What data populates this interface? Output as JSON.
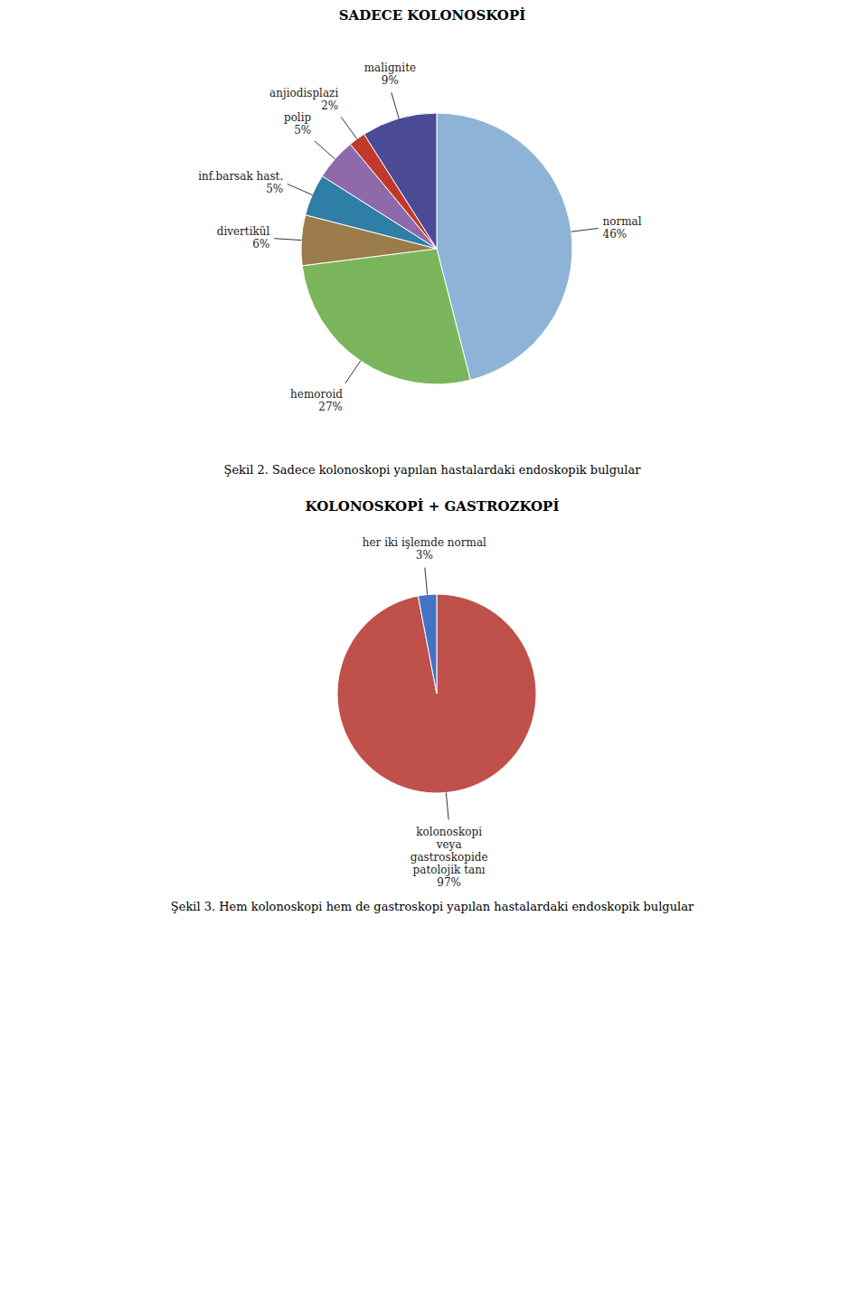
{
  "chart_data": [
    {
      "type": "pie",
      "title": "SADECE KOLONOSKOPİ",
      "subtitle": "Şekil 2. Sadece kolonoskopi yapılan hastalardaki endoskopik bulgular",
      "categories": [
        "normal",
        "hemoroid",
        "divertikül",
        "inf.barsak hast.",
        "polip",
        "anjiodisplazi",
        "malignite"
      ],
      "values": [
        46,
        27,
        6,
        5,
        5,
        2,
        9
      ],
      "value_labels": [
        "46%",
        "27%",
        "6%",
        "5%",
        "5%",
        "2%",
        "9%"
      ],
      "colors": [
        "#8db4d6",
        "#7ab55c",
        "#9b7b4a",
        "#2e7ea6",
        "#8e6aab",
        "#c0392b",
        "#4a4a96"
      ],
      "data_labels": true
    },
    {
      "type": "pie",
      "title": "KOLONOSKOPİ + GASTROZKOPİ",
      "subtitle": "Şekil 3. Hem kolonoskopi hem de gastroskopi yapılan hastalardaki endoskopik bulgular",
      "categories": [
        "kolonoskopi\nveya\ngastroskopide\npatolojik tanı",
        "her iki işlemde normal"
      ],
      "values": [
        97,
        3
      ],
      "value_labels": [
        "97%",
        "3%"
      ],
      "colors": [
        "#c0504a",
        "#4472c4"
      ],
      "data_labels": true
    }
  ]
}
